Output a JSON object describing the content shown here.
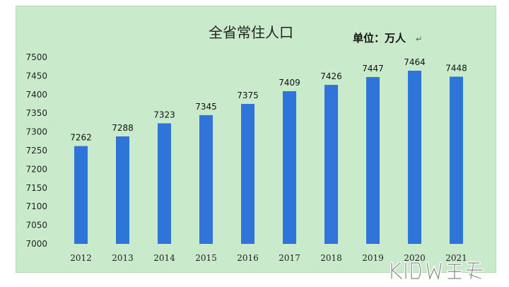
{
  "chart_data": {
    "type": "bar",
    "title": "全省常住人口",
    "unit_label": "单位：万人",
    "categories": [
      "2012",
      "2013",
      "2014",
      "2015",
      "2016",
      "2017",
      "2018",
      "2019",
      "2020",
      "2021"
    ],
    "values": [
      7262,
      7288,
      7323,
      7345,
      7375,
      7409,
      7426,
      7447,
      7464,
      7448
    ],
    "ylim": [
      7000,
      7500
    ],
    "yticks": [
      7000,
      7050,
      7100,
      7150,
      7200,
      7250,
      7300,
      7350,
      7400,
      7450,
      7500
    ],
    "grid": false,
    "bar_color": "#2f74d8",
    "background_color": "#c9ebcc"
  }
}
